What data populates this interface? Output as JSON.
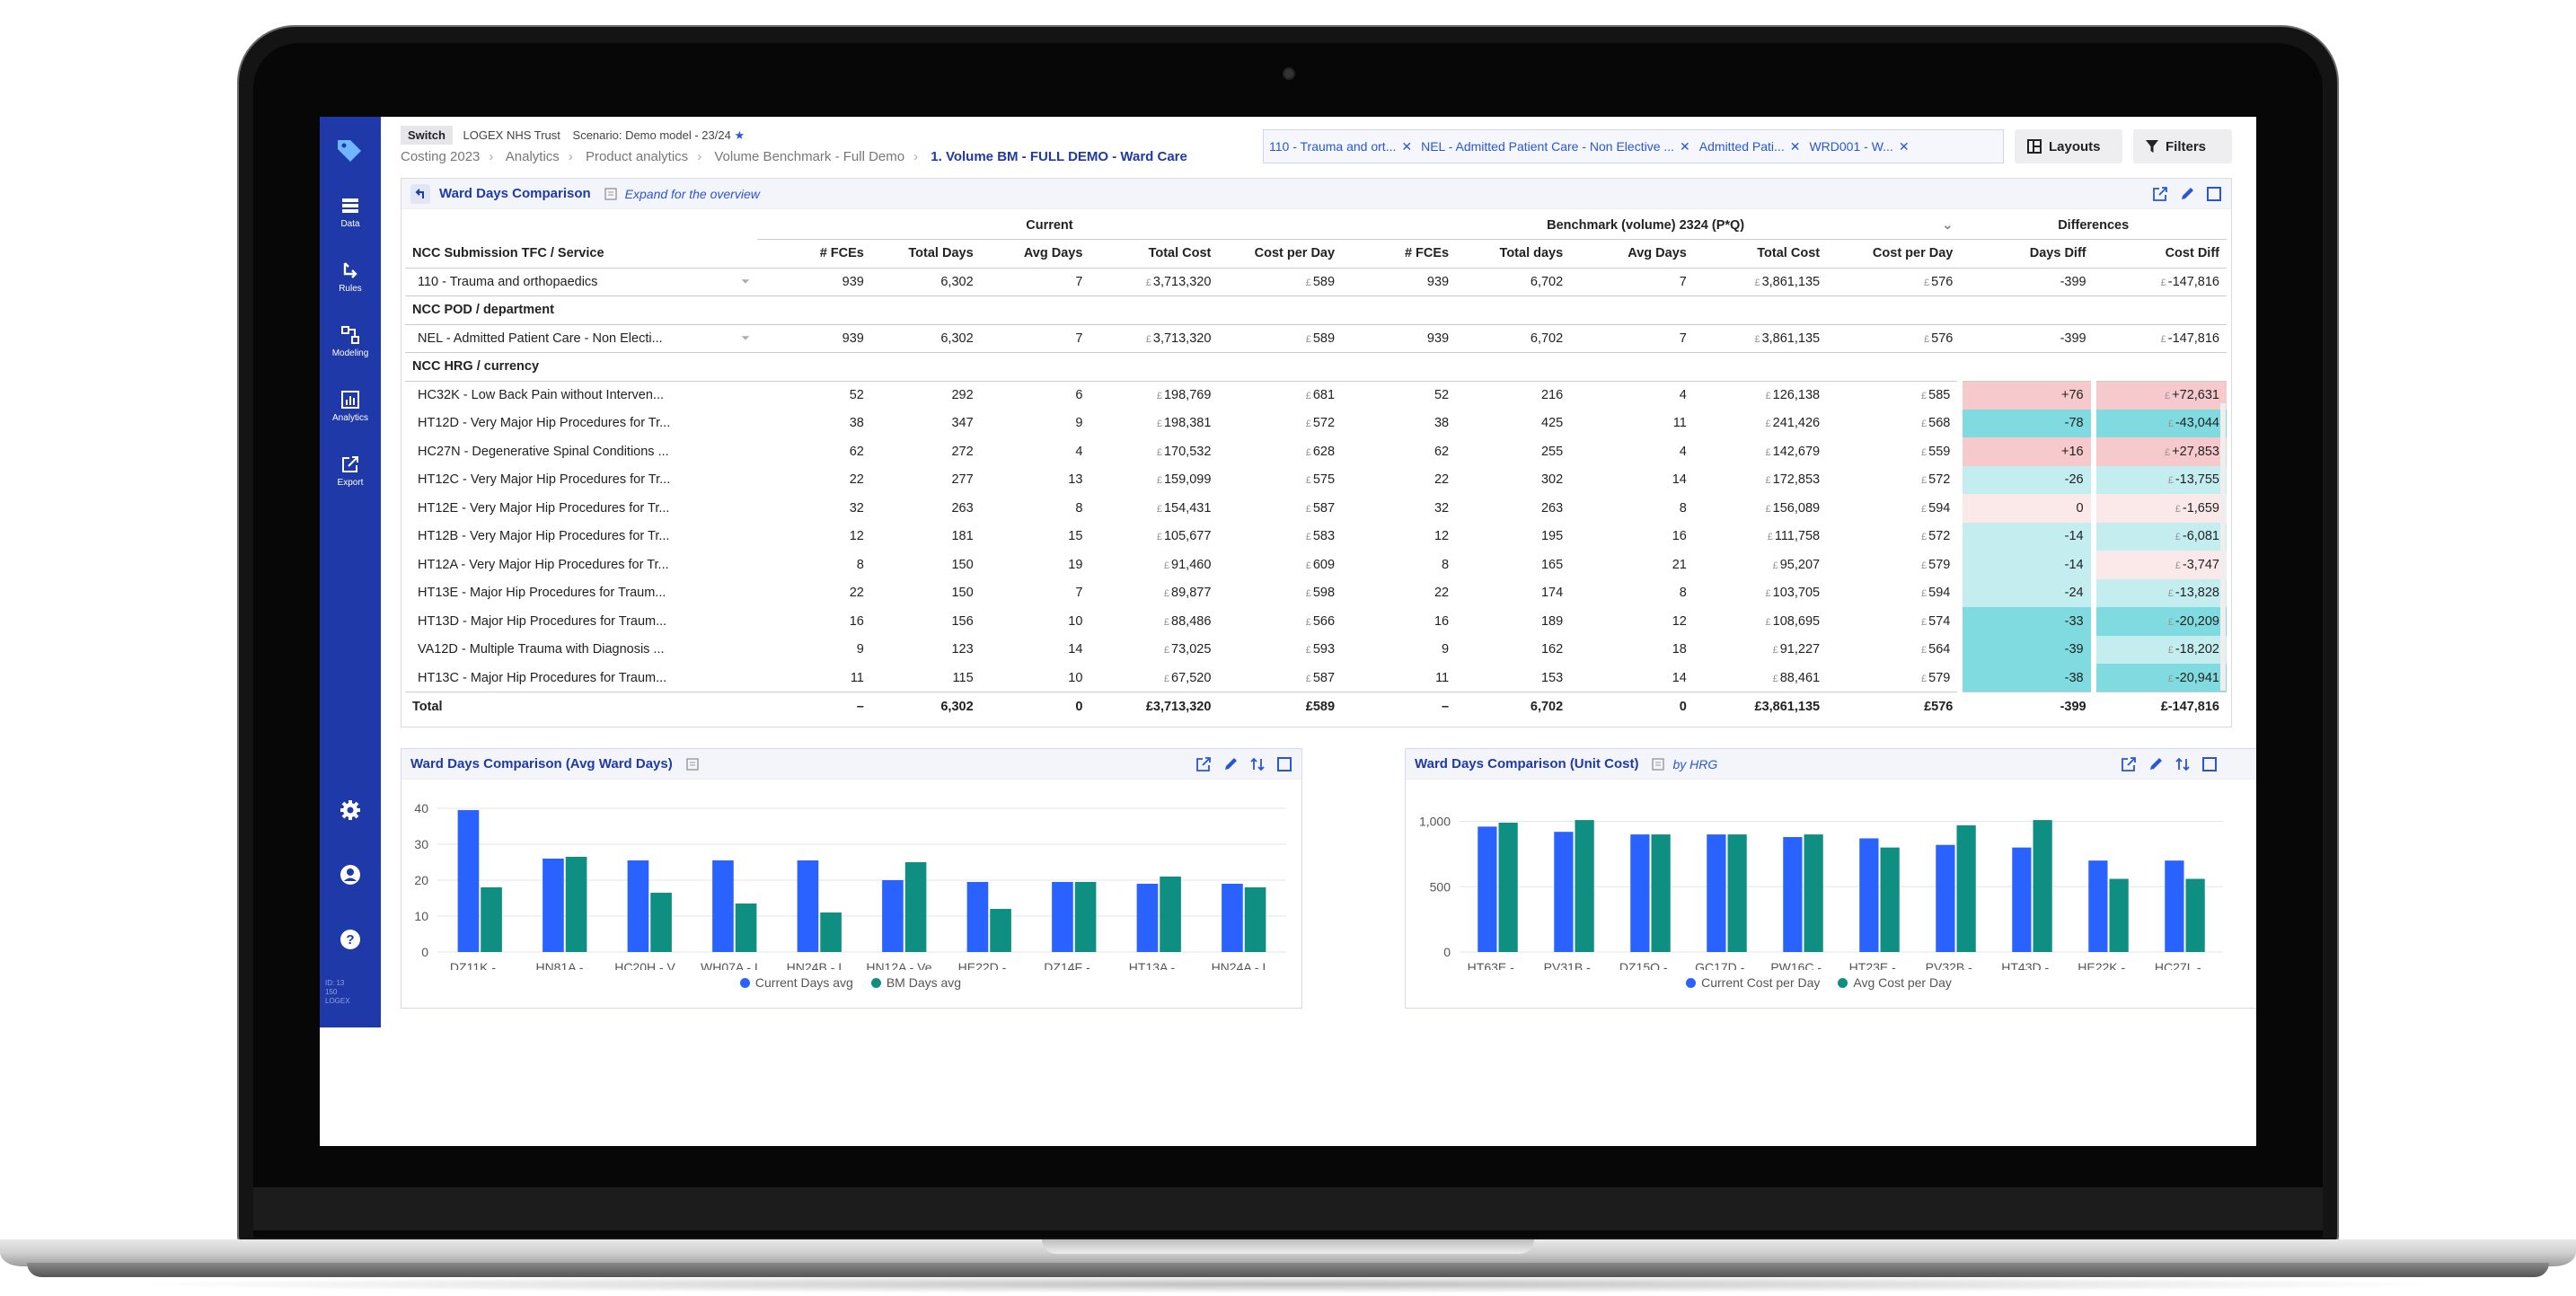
{
  "app": {
    "switch_label": "Switch",
    "org": "LOGEX NHS Trust",
    "scenario": "Scenario: Demo model - 23/24",
    "star": "★"
  },
  "sidebar": {
    "items": [
      {
        "label": "Data",
        "icon": "list-icon"
      },
      {
        "label": "Rules",
        "icon": "rules-icon"
      },
      {
        "label": "Modeling",
        "icon": "modeling-icon"
      },
      {
        "label": "Analytics",
        "icon": "analytics-icon"
      },
      {
        "label": "Export",
        "icon": "export-icon"
      }
    ],
    "footer": [
      "ID: 13",
      "150",
      "LOGEX"
    ]
  },
  "breadcrumb": [
    "Costing 2023",
    "Analytics",
    "Product analytics",
    "Volume Benchmark - Full Demo",
    "1. Volume BM - FULL DEMO - Ward Care"
  ],
  "filters": {
    "chips": [
      "110 - Trauma and ort...",
      "NEL - Admitted Patient Care - Non Elective ...",
      "Admitted Pati...",
      "WRD001 - W..."
    ],
    "layouts_label": "Layouts",
    "filters_label": "Filters"
  },
  "table_panel": {
    "title": "Ward Days Comparison",
    "subtitle": "Expand for the overview",
    "group_current": "Current",
    "group_benchmark": "Benchmark (volume) 2324 (P*Q)",
    "group_diff": "Differences",
    "columns": [
      "NCC Submission TFC / Service",
      "# FCEs",
      "Total Days",
      "Avg Days",
      "Total Cost",
      "Cost per Day",
      "# FCEs",
      "Total days",
      "Avg Days",
      "Total Cost",
      "Cost per Day",
      "Days Diff",
      "Cost Diff"
    ],
    "currency": "£",
    "sections": [
      {
        "header": "",
        "rows": [
          [
            "110 - Trauma and orthopaedics",
            "939",
            "6,302",
            "7",
            "3,713,320",
            "589",
            "939",
            "6,702",
            "7",
            "3,861,135",
            "576",
            "-399",
            "-147,816"
          ]
        ]
      },
      {
        "header": "NCC POD / department",
        "rows": [
          [
            "NEL - Admitted Patient Care - Non Electi...",
            "939",
            "6,302",
            "7",
            "3,713,320",
            "589",
            "939",
            "6,702",
            "7",
            "3,861,135",
            "576",
            "-399",
            "-147,816"
          ]
        ]
      },
      {
        "header": "NCC HRG / currency",
        "rows": [
          [
            "HC32K - Low Back Pain without Interven...",
            "52",
            "292",
            "6",
            "198,769",
            "681",
            "52",
            "216",
            "4",
            "126,138",
            "585",
            "+76",
            "+72,631"
          ],
          [
            "HT12D - Very Major Hip Procedures for Tr...",
            "38",
            "347",
            "9",
            "198,381",
            "572",
            "38",
            "425",
            "11",
            "241,426",
            "568",
            "-78",
            "-43,044"
          ],
          [
            "HC27N - Degenerative Spinal Conditions ...",
            "62",
            "272",
            "4",
            "170,532",
            "628",
            "62",
            "255",
            "4",
            "142,679",
            "559",
            "+16",
            "+27,853"
          ],
          [
            "HT12C - Very Major Hip Procedures for Tr...",
            "22",
            "277",
            "13",
            "159,099",
            "575",
            "22",
            "302",
            "14",
            "172,853",
            "572",
            "-26",
            "-13,755"
          ],
          [
            "HT12E - Very Major Hip Procedures for Tr...",
            "32",
            "263",
            "8",
            "154,431",
            "587",
            "32",
            "263",
            "8",
            "156,089",
            "594",
            "0",
            "-1,659"
          ],
          [
            "HT12B - Very Major Hip Procedures for Tr...",
            "12",
            "181",
            "15",
            "105,677",
            "583",
            "12",
            "195",
            "16",
            "111,758",
            "572",
            "-14",
            "-6,081"
          ],
          [
            "HT12A - Very Major Hip Procedures for Tr...",
            "8",
            "150",
            "19",
            "91,460",
            "609",
            "8",
            "165",
            "21",
            "95,207",
            "579",
            "-14",
            "-3,747"
          ],
          [
            "HT13E - Major Hip Procedures for Traum...",
            "22",
            "150",
            "7",
            "89,877",
            "598",
            "22",
            "174",
            "8",
            "103,705",
            "594",
            "-24",
            "-13,828"
          ],
          [
            "HT13D - Major Hip Procedures for Traum...",
            "16",
            "156",
            "10",
            "88,486",
            "566",
            "16",
            "189",
            "12",
            "108,695",
            "574",
            "-33",
            "-20,209"
          ],
          [
            "VA12D - Multiple Trauma with Diagnosis ...",
            "9",
            "123",
            "14",
            "73,025",
            "593",
            "9",
            "162",
            "18",
            "91,227",
            "564",
            "-39",
            "-18,202"
          ],
          [
            "HT13C - Major Hip Procedures for Traum...",
            "11",
            "115",
            "10",
            "67,520",
            "587",
            "11",
            "153",
            "14",
            "88,461",
            "579",
            "-38",
            "-20,941"
          ]
        ]
      }
    ],
    "total": [
      "Total",
      "–",
      "6,302",
      "0",
      "£3,713,320",
      "£589",
      "–",
      "6,702",
      "0",
      "£3,861,135",
      "£576",
      "-399",
      "£-147,816"
    ]
  },
  "chart_data": [
    {
      "type": "bar",
      "title": "Ward Days Comparison (Avg Ward Days)",
      "subtitle": "",
      "categories": [
        "DZ11K - ...",
        "HN81A -...",
        "HC20H - V...",
        "WH07A - I...",
        "HN24B - I...",
        "HN12A - Ve...",
        "HE22D - ...",
        "DZ14F - ...",
        "HT13A - ...",
        "HN24A - I..."
      ],
      "series": [
        {
          "name": "Current Days avg",
          "color": "#2962ff",
          "values": [
            39.5,
            26,
            25.5,
            25.5,
            25.5,
            20,
            19.5,
            19.5,
            19,
            19
          ]
        },
        {
          "name": "BM Days avg",
          "color": "#0e8f82",
          "values": [
            18,
            26.5,
            16.5,
            13.5,
            11,
            25,
            12,
            19.5,
            21,
            18
          ]
        }
      ],
      "yticks": [
        "40",
        "30",
        "20",
        "10",
        "0"
      ],
      "ylim": [
        0,
        40
      ]
    },
    {
      "type": "bar",
      "title": "Ward Days Comparison (Unit Cost)",
      "subtitle": "by HRG",
      "categories": [
        "HT63E - ...",
        "PV31B - ...",
        "DZ15Q - ...",
        "GC17D - ...",
        "PW16C - ...",
        "HT23E - ...",
        "PV32B - ...",
        "HT43D - ...",
        "HE22K - ...",
        "HC27L - ..."
      ],
      "series": [
        {
          "name": "Current Cost per Day",
          "color": "#2962ff",
          "values": [
            960,
            920,
            900,
            900,
            880,
            870,
            820,
            800,
            700,
            700
          ]
        },
        {
          "name": "Avg Cost per Day",
          "color": "#0e8f82",
          "values": [
            990,
            1010,
            900,
            900,
            900,
            800,
            970,
            1010,
            560,
            560
          ]
        }
      ],
      "yticks": [
        "1,000",
        "500",
        "0"
      ],
      "ylim": [
        0,
        1100
      ]
    }
  ]
}
